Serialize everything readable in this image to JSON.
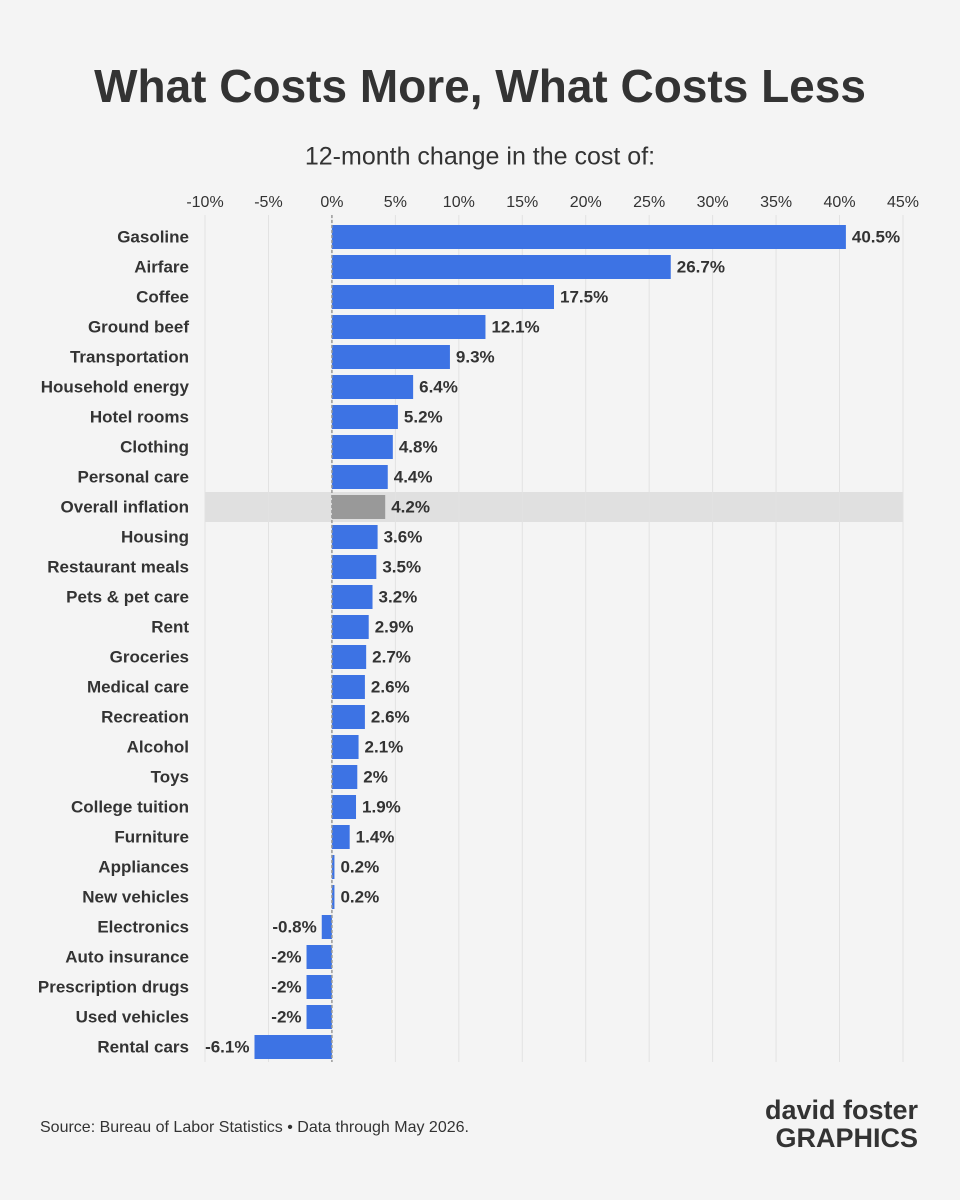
{
  "chart_data": {
    "type": "hbar",
    "title": "What Costs More, What Costs Less",
    "subtitle": "12-month change in the cost of:",
    "categories": [
      "Gasoline",
      "Airfare",
      "Coffee",
      "Ground beef",
      "Transportation",
      "Household energy",
      "Hotel rooms",
      "Clothing",
      "Personal care",
      "Overall inflation",
      "Housing",
      "Restaurant meals",
      "Pets & pet care",
      "Rent",
      "Groceries",
      "Medical care",
      "Recreation",
      "Alcohol",
      "Toys",
      "College tuition",
      "Furniture",
      "Appliances",
      "New vehicles",
      "Electronics",
      "Auto insurance",
      "Prescription drugs",
      "Used vehicles",
      "Rental cars"
    ],
    "values": [
      40.5,
      26.7,
      17.5,
      12.1,
      9.3,
      6.4,
      5.2,
      4.8,
      4.4,
      4.2,
      3.6,
      3.5,
      3.2,
      2.9,
      2.7,
      2.6,
      2.6,
      2.1,
      2,
      1.9,
      1.4,
      0.2,
      0.2,
      -0.8,
      -2,
      -2,
      -2,
      -6.1
    ],
    "value_labels": [
      "40.5%",
      "26.7%",
      "17.5%",
      "12.1%",
      "9.3%",
      "6.4%",
      "5.2%",
      "4.8%",
      "4.4%",
      "4.2%",
      "3.6%",
      "3.5%",
      "3.2%",
      "2.9%",
      "2.7%",
      "2.6%",
      "2.6%",
      "2.1%",
      "2%",
      "1.9%",
      "1.4%",
      "0.2%",
      "0.2%",
      "-0.8%",
      "-2%",
      "-2%",
      "-2%",
      "-6.1%"
    ],
    "color": "#3d73e4",
    "colors": [
      "#3d73e4",
      "#3d73e4",
      "#3d73e4",
      "#3d73e4",
      "#3d73e4",
      "#3d73e4",
      "#3d73e4",
      "#3d73e4",
      "#3d73e4",
      "#999999",
      "#3d73e4",
      "#3d73e4",
      "#3d73e4",
      "#3d73e4",
      "#3d73e4",
      "#3d73e4",
      "#3d73e4",
      "#3d73e4",
      "#3d73e4",
      "#3d73e4",
      "#3d73e4",
      "#3d73e4",
      "#3d73e4",
      "#3d73e4",
      "#3d73e4",
      "#3d73e4",
      "#3d73e4",
      "#3d73e4"
    ],
    "xlim": [
      -10,
      45
    ],
    "xticks": [
      {
        "value": -10,
        "label": "-10%"
      },
      {
        "value": -5,
        "label": "-5%"
      },
      {
        "value": 0,
        "label": "0%"
      },
      {
        "value": 5,
        "label": "5%"
      },
      {
        "value": 10,
        "label": "10%"
      },
      {
        "value": 15,
        "label": "15%"
      },
      {
        "value": 20,
        "label": "20%"
      },
      {
        "value": 25,
        "label": "25%"
      },
      {
        "value": 30,
        "label": "30%"
      },
      {
        "value": 35,
        "label": "35%"
      },
      {
        "value": 40,
        "label": "40%"
      },
      {
        "value": 45,
        "label": "45%"
      }
    ],
    "grid": true,
    "source": "Source: Bureau of Labor Statistics • Data through May 2026.",
    "credit": {
      "line1": "david foster",
      "line2": "GRAPHICS"
    }
  }
}
